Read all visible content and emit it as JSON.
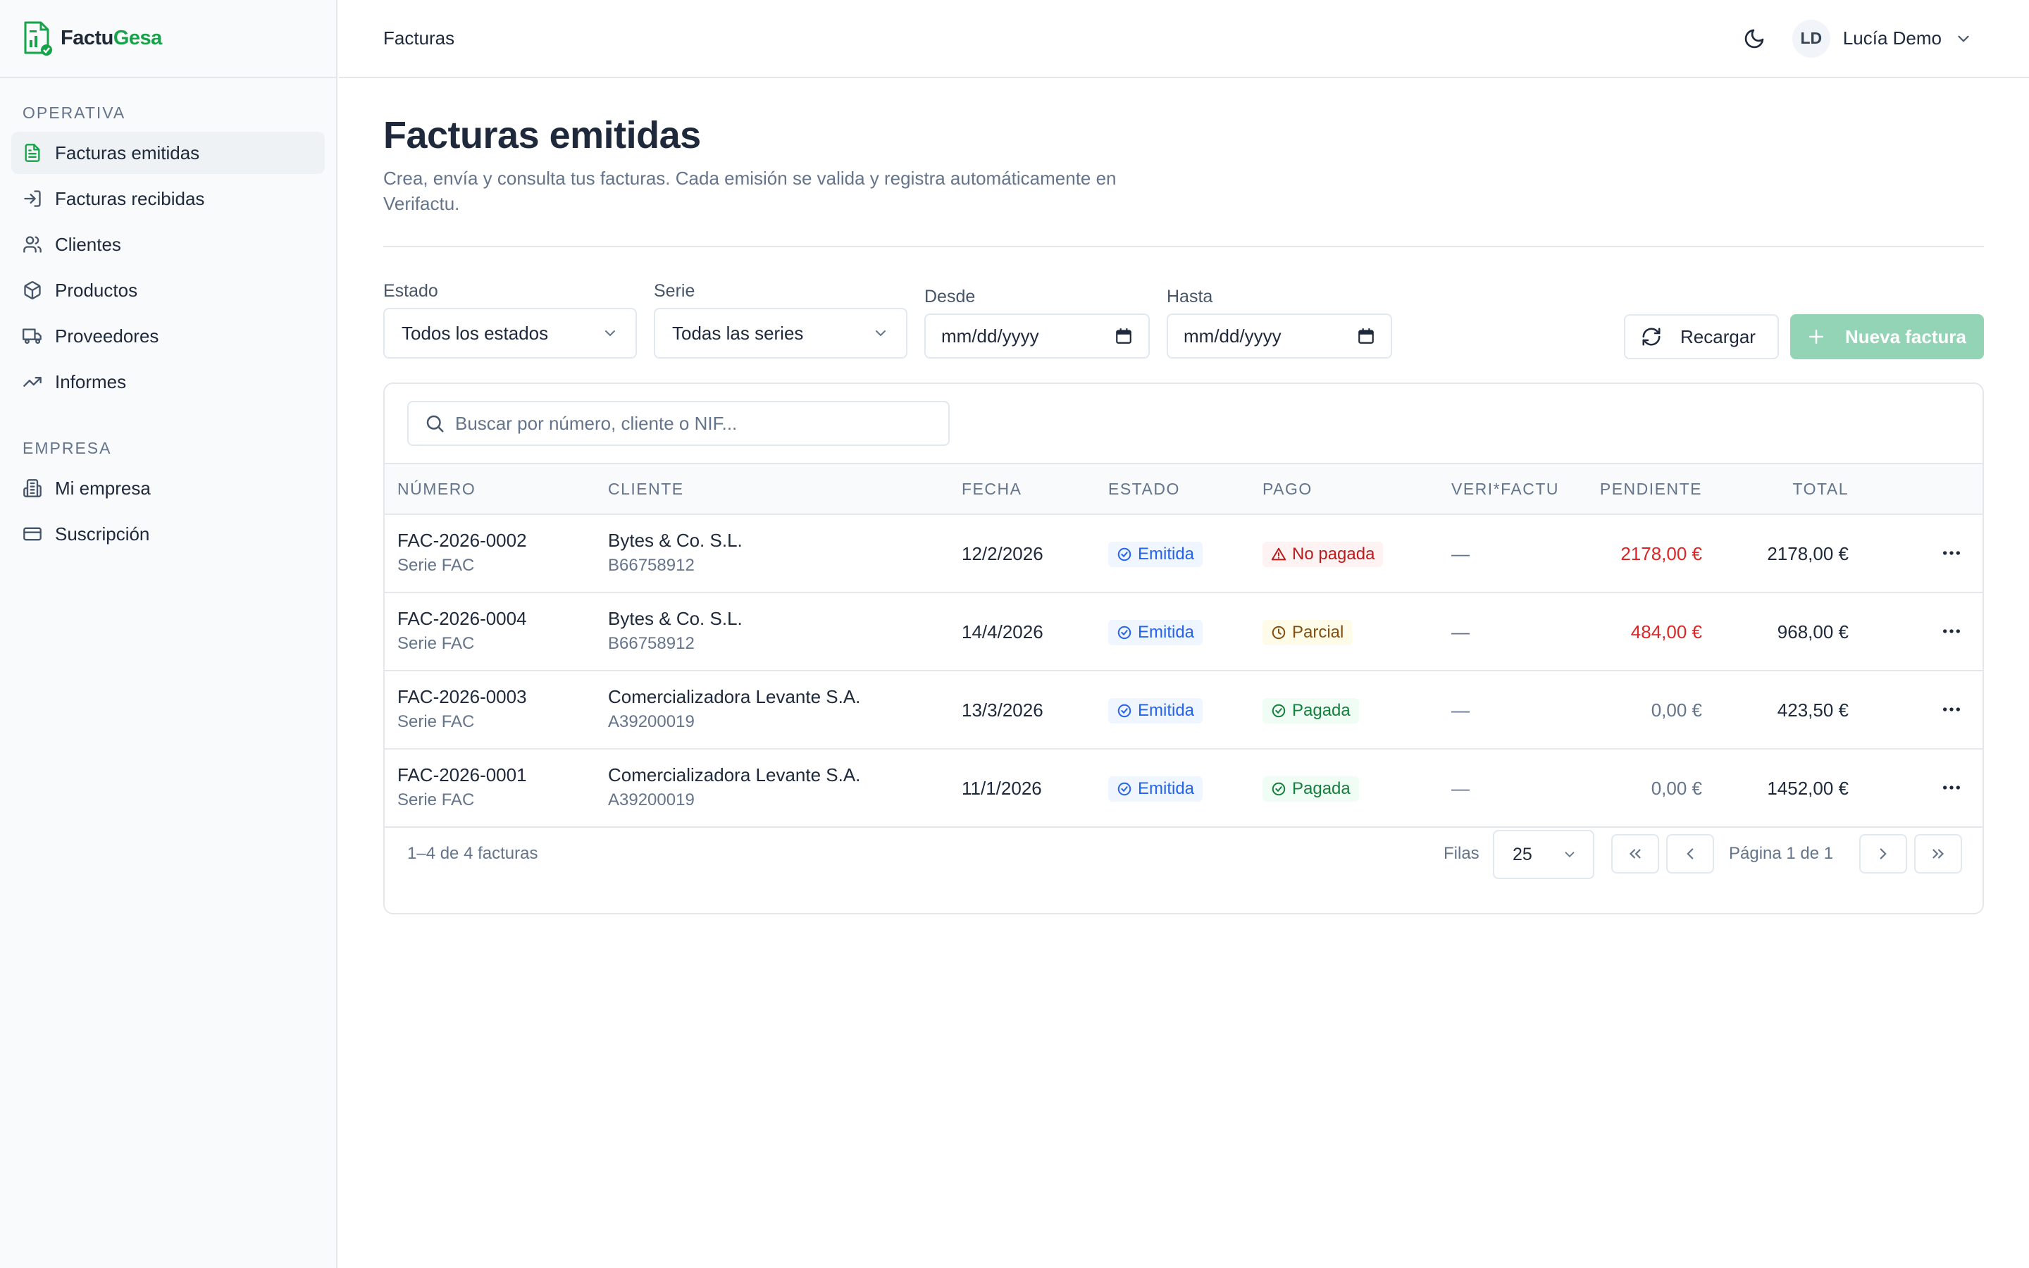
{
  "app": {
    "name_part1": "Factu",
    "name_part2": "Gesa",
    "brand_color": "#16a34a"
  },
  "topbar": {
    "title": "Facturas",
    "user_initials": "LD",
    "user_name": "Lucía Demo"
  },
  "sidebar": {
    "sections": [
      {
        "heading": "OPERATIVA",
        "items": [
          {
            "label": "Facturas emitidas",
            "icon": "invoice-icon",
            "active": true
          },
          {
            "label": "Facturas recibidas",
            "icon": "inbox-icon"
          },
          {
            "label": "Clientes",
            "icon": "users-icon"
          },
          {
            "label": "Productos",
            "icon": "package-icon"
          },
          {
            "label": "Proveedores",
            "icon": "truck-icon"
          },
          {
            "label": "Informes",
            "icon": "trending-icon"
          }
        ]
      },
      {
        "heading": "EMPRESA",
        "items": [
          {
            "label": "Mi empresa",
            "icon": "building-icon"
          },
          {
            "label": "Suscripción",
            "icon": "credit-card-icon"
          }
        ]
      }
    ]
  },
  "page": {
    "title": "Facturas emitidas",
    "description": "Crea, envía y consulta tus facturas. Cada emisión se valida y registra automáticamente en Verifactu."
  },
  "filters": {
    "estado_label": "Estado",
    "estado_value": "Todos los estados",
    "serie_label": "Serie",
    "serie_value": "Todas las series",
    "desde_label": "Desde",
    "desde_value": "mm/dd/yyyy",
    "hasta_label": "Hasta",
    "hasta_value": "mm/dd/yyyy",
    "reload_label": "Recargar",
    "new_label": "Nueva factura"
  },
  "search": {
    "placeholder": "Buscar por número, cliente o NIF..."
  },
  "table": {
    "columns": [
      "NÚMERO",
      "CLIENTE",
      "FECHA",
      "ESTADO",
      "PAGO",
      "VERI*FACTU",
      "PENDIENTE",
      "TOTAL"
    ],
    "rows": [
      {
        "numero": "FAC-2026-0002",
        "serie": "Serie FAC",
        "cliente": "Bytes & Co. S.L.",
        "nif": "B66758912",
        "fecha": "12/2/2026",
        "estado": "Emitida",
        "pago": "No pagada",
        "verifactu": "—",
        "pendiente": "2178,00 €",
        "total": "2178,00 €"
      },
      {
        "numero": "FAC-2026-0004",
        "serie": "Serie FAC",
        "cliente": "Bytes & Co. S.L.",
        "nif": "B66758912",
        "fecha": "14/4/2026",
        "estado": "Emitida",
        "pago": "Parcial",
        "verifactu": "—",
        "pendiente": "484,00 €",
        "total": "968,00 €"
      },
      {
        "numero": "FAC-2026-0003",
        "serie": "Serie FAC",
        "cliente": "Comercializadora Levante S.A.",
        "nif": "A39200019",
        "fecha": "13/3/2026",
        "estado": "Emitida",
        "pago": "Pagada",
        "verifactu": "—",
        "pendiente": "0,00 €",
        "total": "423,50 €"
      },
      {
        "numero": "FAC-2026-0001",
        "serie": "Serie FAC",
        "cliente": "Comercializadora Levante S.A.",
        "nif": "A39200019",
        "fecha": "11/1/2026",
        "estado": "Emitida",
        "pago": "Pagada",
        "verifactu": "—",
        "pendiente": "0,00 €",
        "total": "1452,00 €"
      }
    ]
  },
  "pagination": {
    "summary": "1–4 de 4 facturas",
    "rows_label": "Filas",
    "rows_value": "25",
    "page_label": "Página 1 de 1"
  },
  "colors": {
    "status_blue": "#2563eb",
    "status_red": "#b91c1c",
    "status_amber": "#854d0e",
    "status_green": "#15803d",
    "new_button": "#93d3b6"
  }
}
